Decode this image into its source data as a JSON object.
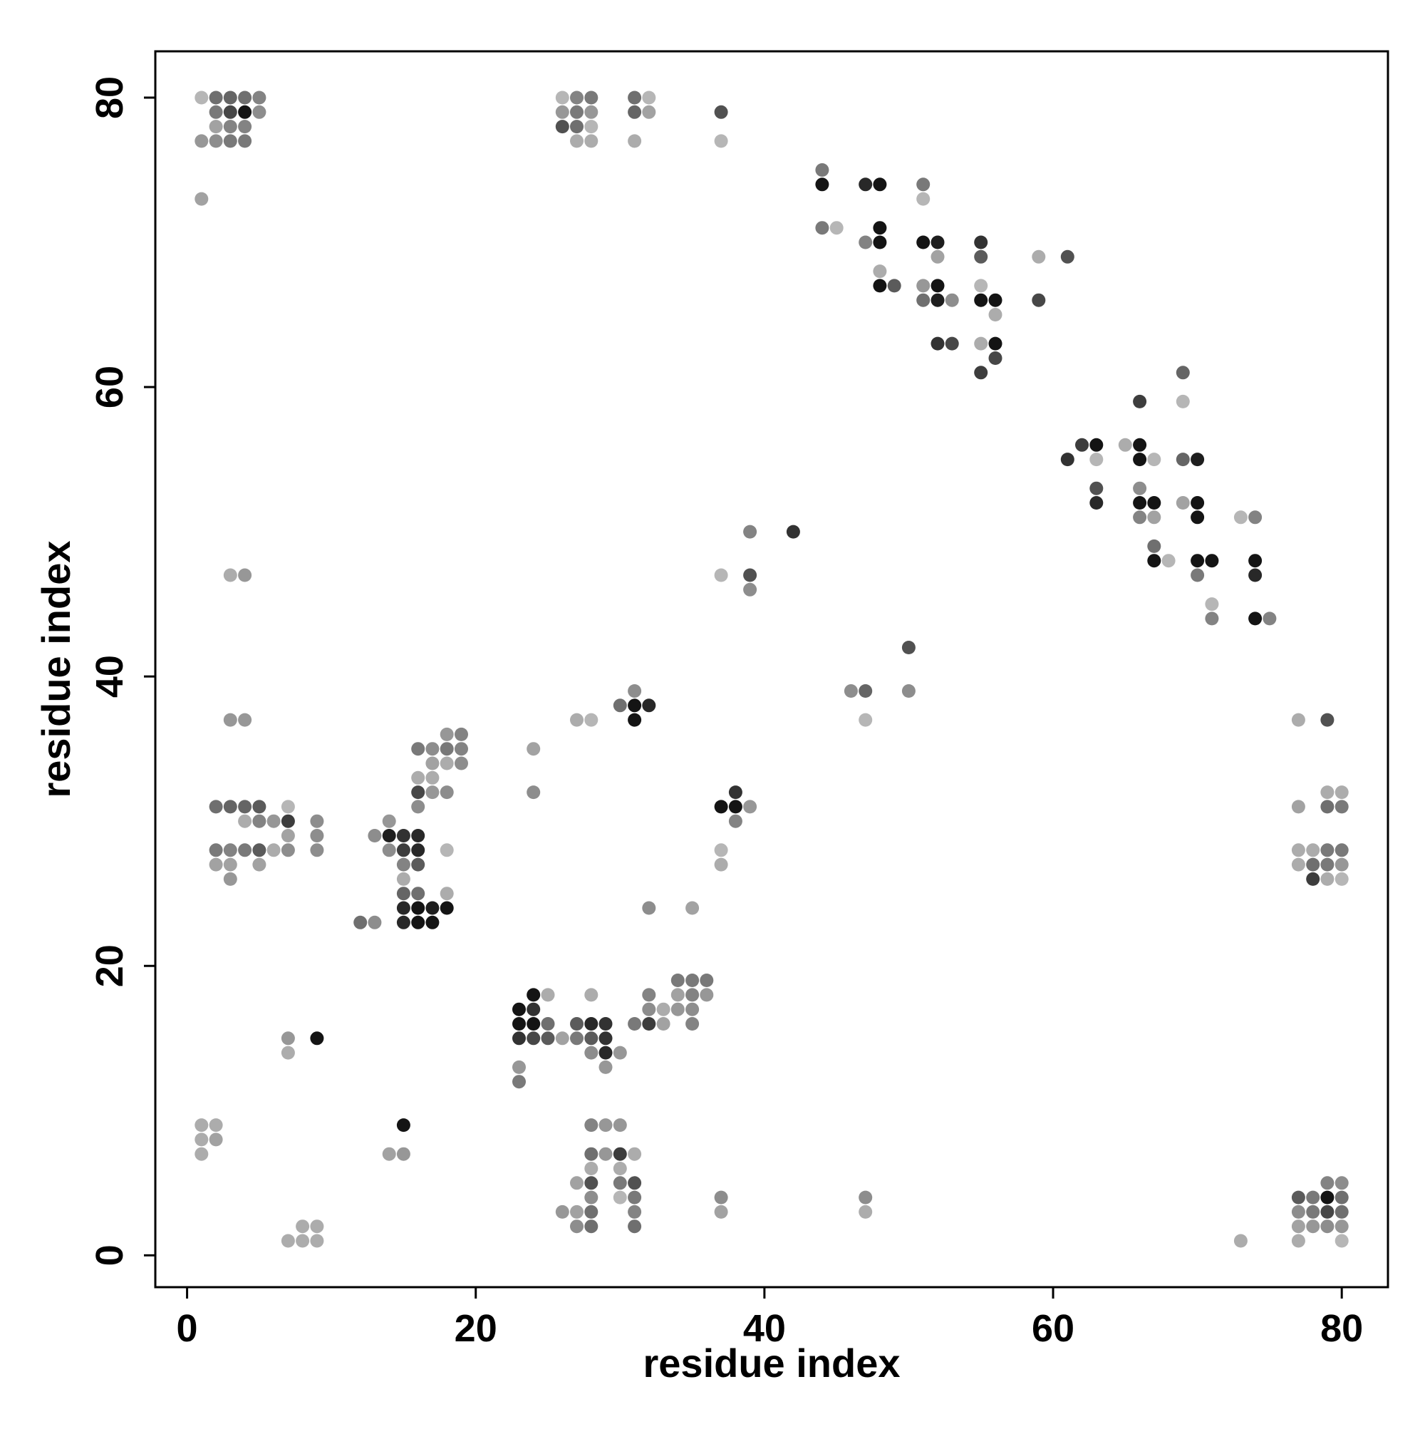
{
  "chart_data": {
    "type": "scatter",
    "title": "",
    "xlabel": "residue index",
    "ylabel": "residue index",
    "xlim": [
      -2.2,
      83.2
    ],
    "ylim": [
      -2.2,
      83.2
    ],
    "xticks": [
      0,
      20,
      40,
      60,
      80
    ],
    "yticks": [
      0,
      20,
      40,
      60,
      80
    ],
    "grid": false,
    "legend": "none",
    "color_scale": {
      "light": "#d4d4d4",
      "dark": "#0a0a0a",
      "description_levels": [
        0,
        1
      ]
    },
    "points": [
      [
        1,
        80,
        0.15
      ],
      [
        2,
        80,
        0.5
      ],
      [
        3,
        80,
        0.55
      ],
      [
        4,
        80,
        0.5
      ],
      [
        5,
        80,
        0.4
      ],
      [
        2,
        79,
        0.45
      ],
      [
        3,
        79,
        0.7
      ],
      [
        4,
        79,
        0.95
      ],
      [
        5,
        79,
        0.35
      ],
      [
        2,
        78,
        0.25
      ],
      [
        3,
        78,
        0.4
      ],
      [
        4,
        78,
        0.4
      ],
      [
        1,
        77,
        0.3
      ],
      [
        2,
        77,
        0.35
      ],
      [
        3,
        77,
        0.45
      ],
      [
        4,
        77,
        0.45
      ],
      [
        1,
        73,
        0.25
      ],
      [
        26,
        80,
        0.15
      ],
      [
        27,
        80,
        0.4
      ],
      [
        28,
        80,
        0.45
      ],
      [
        26,
        79,
        0.3
      ],
      [
        27,
        79,
        0.45
      ],
      [
        28,
        79,
        0.3
      ],
      [
        26,
        78,
        0.65
      ],
      [
        27,
        78,
        0.5
      ],
      [
        28,
        78,
        0.15
      ],
      [
        27,
        77,
        0.2
      ],
      [
        28,
        77,
        0.2
      ],
      [
        31,
        80,
        0.5
      ],
      [
        32,
        80,
        0.15
      ],
      [
        31,
        79,
        0.55
      ],
      [
        32,
        79,
        0.25
      ],
      [
        31,
        77,
        0.2
      ],
      [
        37,
        79,
        0.65
      ],
      [
        37,
        77,
        0.15
      ],
      [
        44,
        75,
        0.45
      ],
      [
        44,
        74,
        0.95
      ],
      [
        47,
        74,
        0.85
      ],
      [
        48,
        74,
        0.95
      ],
      [
        51,
        74,
        0.45
      ],
      [
        51,
        73,
        0.15
      ],
      [
        44,
        71,
        0.45
      ],
      [
        45,
        71,
        0.15
      ],
      [
        48,
        71,
        0.95
      ],
      [
        47,
        70,
        0.4
      ],
      [
        48,
        70,
        0.95
      ],
      [
        51,
        70,
        0.95
      ],
      [
        52,
        70,
        0.9
      ],
      [
        55,
        70,
        0.8
      ],
      [
        52,
        69,
        0.25
      ],
      [
        55,
        69,
        0.6
      ],
      [
        59,
        69,
        0.2
      ],
      [
        61,
        69,
        0.65
      ],
      [
        48,
        68,
        0.2
      ],
      [
        48,
        67,
        0.95
      ],
      [
        49,
        67,
        0.6
      ],
      [
        51,
        67,
        0.3
      ],
      [
        52,
        67,
        0.95
      ],
      [
        55,
        67,
        0.15
      ],
      [
        51,
        66,
        0.5
      ],
      [
        52,
        66,
        0.9
      ],
      [
        53,
        66,
        0.35
      ],
      [
        55,
        66,
        0.95
      ],
      [
        56,
        66,
        0.95
      ],
      [
        59,
        66,
        0.7
      ],
      [
        56,
        65,
        0.2
      ],
      [
        52,
        63,
        0.8
      ],
      [
        53,
        63,
        0.7
      ],
      [
        55,
        63,
        0.2
      ],
      [
        56,
        63,
        0.95
      ],
      [
        56,
        62,
        0.7
      ],
      [
        55,
        61,
        0.75
      ],
      [
        69,
        61,
        0.55
      ],
      [
        69,
        59,
        0.15
      ],
      [
        66,
        59,
        0.75
      ],
      [
        62,
        56,
        0.75
      ],
      [
        63,
        56,
        0.95
      ],
      [
        65,
        56,
        0.2
      ],
      [
        66,
        56,
        0.95
      ],
      [
        61,
        55,
        0.8
      ],
      [
        63,
        55,
        0.15
      ],
      [
        66,
        55,
        0.95
      ],
      [
        67,
        55,
        0.15
      ],
      [
        69,
        55,
        0.55
      ],
      [
        70,
        55,
        0.9
      ],
      [
        63,
        53,
        0.65
      ],
      [
        66,
        53,
        0.35
      ],
      [
        63,
        52,
        0.85
      ],
      [
        66,
        52,
        0.95
      ],
      [
        67,
        52,
        0.95
      ],
      [
        69,
        52,
        0.25
      ],
      [
        70,
        52,
        0.95
      ],
      [
        66,
        51,
        0.4
      ],
      [
        67,
        51,
        0.25
      ],
      [
        70,
        51,
        0.95
      ],
      [
        73,
        51,
        0.15
      ],
      [
        74,
        51,
        0.4
      ],
      [
        67,
        49,
        0.5
      ],
      [
        67,
        48,
        0.95
      ],
      [
        68,
        48,
        0.15
      ],
      [
        70,
        48,
        0.95
      ],
      [
        71,
        48,
        0.95
      ],
      [
        74,
        48,
        0.95
      ],
      [
        70,
        47,
        0.45
      ],
      [
        74,
        47,
        0.85
      ],
      [
        71,
        45,
        0.15
      ],
      [
        71,
        44,
        0.4
      ],
      [
        74,
        44,
        0.95
      ],
      [
        75,
        44,
        0.4
      ],
      [
        39,
        50,
        0.4
      ],
      [
        42,
        50,
        0.8
      ],
      [
        37,
        47,
        0.15
      ],
      [
        39,
        47,
        0.65
      ],
      [
        39,
        46,
        0.35
      ],
      [
        50,
        42,
        0.65
      ],
      [
        46,
        39,
        0.35
      ],
      [
        47,
        39,
        0.55
      ],
      [
        50,
        39,
        0.35
      ],
      [
        47,
        37,
        0.15
      ],
      [
        31,
        39,
        0.35
      ],
      [
        30,
        38,
        0.5
      ],
      [
        31,
        38,
        0.95
      ],
      [
        32,
        38,
        0.85
      ],
      [
        31,
        37,
        0.95
      ],
      [
        27,
        37,
        0.2
      ],
      [
        28,
        37,
        0.15
      ],
      [
        38,
        32,
        0.8
      ],
      [
        37,
        31,
        0.95
      ],
      [
        38,
        31,
        0.95
      ],
      [
        39,
        31,
        0.3
      ],
      [
        38,
        30,
        0.4
      ],
      [
        37,
        28,
        0.15
      ],
      [
        37,
        27,
        0.2
      ],
      [
        2,
        31,
        0.5
      ],
      [
        3,
        31,
        0.55
      ],
      [
        4,
        31,
        0.55
      ],
      [
        5,
        31,
        0.6
      ],
      [
        7,
        31,
        0.15
      ],
      [
        4,
        30,
        0.2
      ],
      [
        5,
        30,
        0.4
      ],
      [
        6,
        30,
        0.3
      ],
      [
        7,
        30,
        0.75
      ],
      [
        9,
        30,
        0.35
      ],
      [
        7,
        29,
        0.25
      ],
      [
        9,
        29,
        0.35
      ],
      [
        2,
        28,
        0.45
      ],
      [
        3,
        28,
        0.4
      ],
      [
        4,
        28,
        0.45
      ],
      [
        5,
        28,
        0.6
      ],
      [
        6,
        28,
        0.2
      ],
      [
        7,
        28,
        0.35
      ],
      [
        9,
        28,
        0.35
      ],
      [
        2,
        27,
        0.25
      ],
      [
        3,
        27,
        0.25
      ],
      [
        5,
        27,
        0.25
      ],
      [
        3,
        26,
        0.3
      ],
      [
        3,
        47,
        0.2
      ],
      [
        4,
        47,
        0.3
      ],
      [
        3,
        37,
        0.3
      ],
      [
        4,
        37,
        0.3
      ],
      [
        14,
        30,
        0.3
      ],
      [
        13,
        29,
        0.35
      ],
      [
        14,
        29,
        0.9
      ],
      [
        15,
        29,
        0.8
      ],
      [
        16,
        29,
        0.85
      ],
      [
        14,
        28,
        0.35
      ],
      [
        15,
        28,
        0.75
      ],
      [
        16,
        28,
        0.85
      ],
      [
        18,
        28,
        0.15
      ],
      [
        15,
        27,
        0.4
      ],
      [
        16,
        27,
        0.6
      ],
      [
        15,
        26,
        0.2
      ],
      [
        15,
        25,
        0.55
      ],
      [
        16,
        25,
        0.5
      ],
      [
        18,
        25,
        0.2
      ],
      [
        15,
        24,
        0.85
      ],
      [
        16,
        24,
        0.95
      ],
      [
        17,
        24,
        0.9
      ],
      [
        18,
        24,
        0.95
      ],
      [
        12,
        23,
        0.5
      ],
      [
        13,
        23,
        0.35
      ],
      [
        15,
        23,
        0.85
      ],
      [
        16,
        23,
        0.95
      ],
      [
        17,
        23,
        0.95
      ],
      [
        18,
        36,
        0.3
      ],
      [
        19,
        36,
        0.4
      ],
      [
        16,
        35,
        0.45
      ],
      [
        17,
        35,
        0.35
      ],
      [
        18,
        35,
        0.45
      ],
      [
        19,
        35,
        0.4
      ],
      [
        17,
        34,
        0.25
      ],
      [
        18,
        34,
        0.2
      ],
      [
        19,
        34,
        0.35
      ],
      [
        16,
        33,
        0.2
      ],
      [
        17,
        33,
        0.2
      ],
      [
        16,
        32,
        0.7
      ],
      [
        17,
        32,
        0.3
      ],
      [
        18,
        32,
        0.35
      ],
      [
        16,
        31,
        0.35
      ],
      [
        24,
        35,
        0.25
      ],
      [
        24,
        32,
        0.35
      ],
      [
        23,
        17,
        0.95
      ],
      [
        24,
        18,
        0.95
      ],
      [
        25,
        18,
        0.2
      ],
      [
        24,
        17,
        0.8
      ],
      [
        23,
        16,
        0.95
      ],
      [
        24,
        16,
        0.95
      ],
      [
        25,
        16,
        0.5
      ],
      [
        23,
        15,
        0.8
      ],
      [
        24,
        15,
        0.7
      ],
      [
        25,
        15,
        0.6
      ],
      [
        26,
        15,
        0.25
      ],
      [
        23,
        13,
        0.3
      ],
      [
        23,
        12,
        0.45
      ],
      [
        28,
        18,
        0.2
      ],
      [
        27,
        16,
        0.6
      ],
      [
        28,
        16,
        0.85
      ],
      [
        29,
        16,
        0.8
      ],
      [
        27,
        15,
        0.45
      ],
      [
        28,
        15,
        0.6
      ],
      [
        29,
        15,
        0.8
      ],
      [
        28,
        14,
        0.35
      ],
      [
        29,
        14,
        0.85
      ],
      [
        30,
        14,
        0.3
      ],
      [
        29,
        13,
        0.3
      ],
      [
        32,
        18,
        0.4
      ],
      [
        32,
        17,
        0.35
      ],
      [
        33,
        17,
        0.2
      ],
      [
        34,
        17,
        0.3
      ],
      [
        35,
        17,
        0.35
      ],
      [
        31,
        16,
        0.45
      ],
      [
        32,
        16,
        0.75
      ],
      [
        33,
        16,
        0.25
      ],
      [
        35,
        16,
        0.4
      ],
      [
        34,
        19,
        0.45
      ],
      [
        35,
        19,
        0.45
      ],
      [
        36,
        19,
        0.45
      ],
      [
        34,
        18,
        0.25
      ],
      [
        35,
        18,
        0.4
      ],
      [
        36,
        18,
        0.3
      ],
      [
        32,
        24,
        0.35
      ],
      [
        35,
        24,
        0.25
      ],
      [
        7,
        15,
        0.3
      ],
      [
        9,
        15,
        0.95
      ],
      [
        7,
        14,
        0.2
      ],
      [
        1,
        9,
        0.2
      ],
      [
        2,
        9,
        0.2
      ],
      [
        1,
        8,
        0.2
      ],
      [
        2,
        8,
        0.25
      ],
      [
        1,
        7,
        0.2
      ],
      [
        15,
        9,
        0.95
      ],
      [
        14,
        7,
        0.25
      ],
      [
        15,
        7,
        0.3
      ],
      [
        8,
        2,
        0.2
      ],
      [
        9,
        2,
        0.2
      ],
      [
        7,
        1,
        0.2
      ],
      [
        8,
        1,
        0.2
      ],
      [
        9,
        1,
        0.2
      ],
      [
        28,
        9,
        0.4
      ],
      [
        29,
        9,
        0.3
      ],
      [
        30,
        9,
        0.3
      ],
      [
        28,
        7,
        0.5
      ],
      [
        29,
        7,
        0.3
      ],
      [
        30,
        7,
        0.75
      ],
      [
        31,
        7,
        0.2
      ],
      [
        28,
        6,
        0.2
      ],
      [
        30,
        6,
        0.2
      ],
      [
        27,
        5,
        0.25
      ],
      [
        28,
        5,
        0.65
      ],
      [
        30,
        5,
        0.45
      ],
      [
        31,
        5,
        0.65
      ],
      [
        28,
        4,
        0.35
      ],
      [
        30,
        4,
        0.15
      ],
      [
        31,
        4,
        0.45
      ],
      [
        26,
        3,
        0.3
      ],
      [
        27,
        3,
        0.25
      ],
      [
        28,
        3,
        0.5
      ],
      [
        31,
        3,
        0.4
      ],
      [
        27,
        2,
        0.35
      ],
      [
        28,
        2,
        0.5
      ],
      [
        31,
        2,
        0.5
      ],
      [
        37,
        4,
        0.35
      ],
      [
        37,
        3,
        0.25
      ],
      [
        47,
        4,
        0.35
      ],
      [
        47,
        3,
        0.2
      ],
      [
        73,
        1,
        0.2
      ],
      [
        77,
        37,
        0.2
      ],
      [
        79,
        37,
        0.65
      ],
      [
        79,
        32,
        0.2
      ],
      [
        80,
        32,
        0.2
      ],
      [
        77,
        31,
        0.25
      ],
      [
        79,
        31,
        0.5
      ],
      [
        80,
        31,
        0.45
      ],
      [
        77,
        28,
        0.2
      ],
      [
        78,
        28,
        0.2
      ],
      [
        79,
        28,
        0.45
      ],
      [
        80,
        28,
        0.45
      ],
      [
        77,
        27,
        0.2
      ],
      [
        78,
        27,
        0.5
      ],
      [
        79,
        27,
        0.45
      ],
      [
        80,
        27,
        0.3
      ],
      [
        78,
        26,
        0.75
      ],
      [
        79,
        26,
        0.2
      ],
      [
        80,
        26,
        0.15
      ],
      [
        79,
        5,
        0.4
      ],
      [
        80,
        5,
        0.35
      ],
      [
        77,
        4,
        0.6
      ],
      [
        78,
        4,
        0.45
      ],
      [
        79,
        4,
        0.95
      ],
      [
        80,
        4,
        0.5
      ],
      [
        77,
        3,
        0.35
      ],
      [
        78,
        3,
        0.45
      ],
      [
        79,
        3,
        0.7
      ],
      [
        80,
        3,
        0.5
      ],
      [
        77,
        2,
        0.25
      ],
      [
        78,
        2,
        0.3
      ],
      [
        79,
        2,
        0.35
      ],
      [
        80,
        2,
        0.3
      ],
      [
        77,
        1,
        0.2
      ],
      [
        80,
        1,
        0.15
      ]
    ]
  }
}
